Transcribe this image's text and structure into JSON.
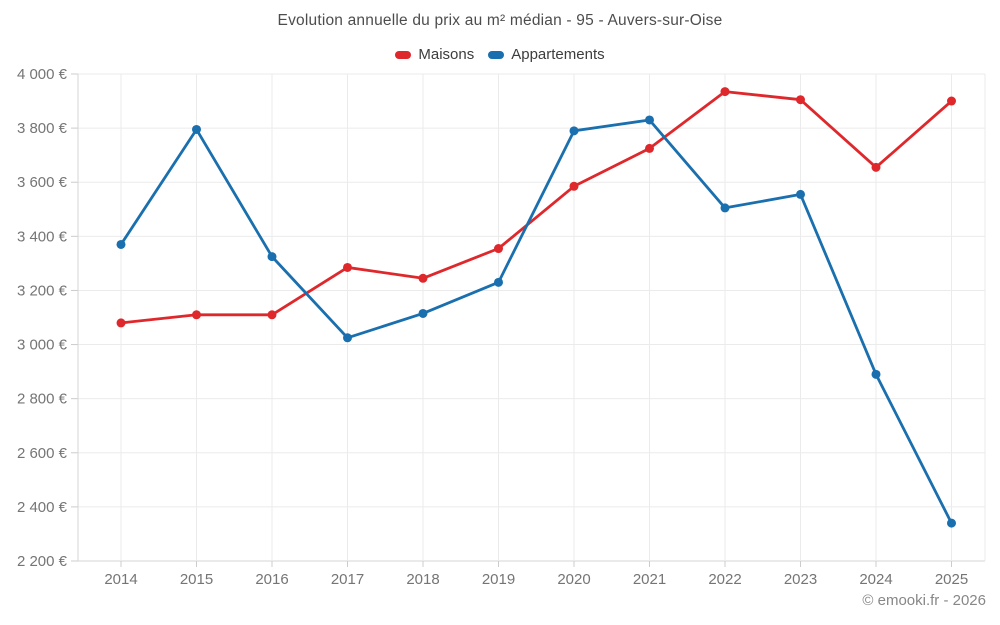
{
  "title": "Evolution annuelle du prix au m² médian - 95 - Auvers-sur-Oise",
  "watermark": "© emooki.fr - 2026",
  "colors": {
    "maisons": "#df282c",
    "appartements": "#1a6fae",
    "grid": "#ebebeb",
    "axis": "#d6d6d6",
    "tick": "#cccccc",
    "tick_label": "#757575",
    "title_text": "#4d4d4d",
    "legend_text": "#3d3d3d",
    "watermark_text": "#878787"
  },
  "chart_data": {
    "type": "line",
    "x": [
      2014,
      2015,
      2016,
      2017,
      2018,
      2019,
      2020,
      2021,
      2022,
      2023,
      2024,
      2025
    ],
    "series": [
      {
        "name": "Maisons",
        "color": "#df282c",
        "values": [
          3080,
          3110,
          3110,
          3285,
          3245,
          3355,
          3585,
          3725,
          3935,
          3905,
          3655,
          3900
        ]
      },
      {
        "name": "Appartements",
        "color": "#1a6fae",
        "values": [
          3370,
          3795,
          3325,
          3025,
          3115,
          3230,
          3790,
          3830,
          3505,
          3555,
          2890,
          2340
        ]
      }
    ],
    "title": "Evolution annuelle du prix au m² médian - 95 - Auvers-sur-Oise",
    "xlabel": "",
    "ylabel": "",
    "ylim": [
      2200,
      4000
    ],
    "ytick_step": 200,
    "yunit": "€",
    "grid": true,
    "legend_position": "top"
  }
}
